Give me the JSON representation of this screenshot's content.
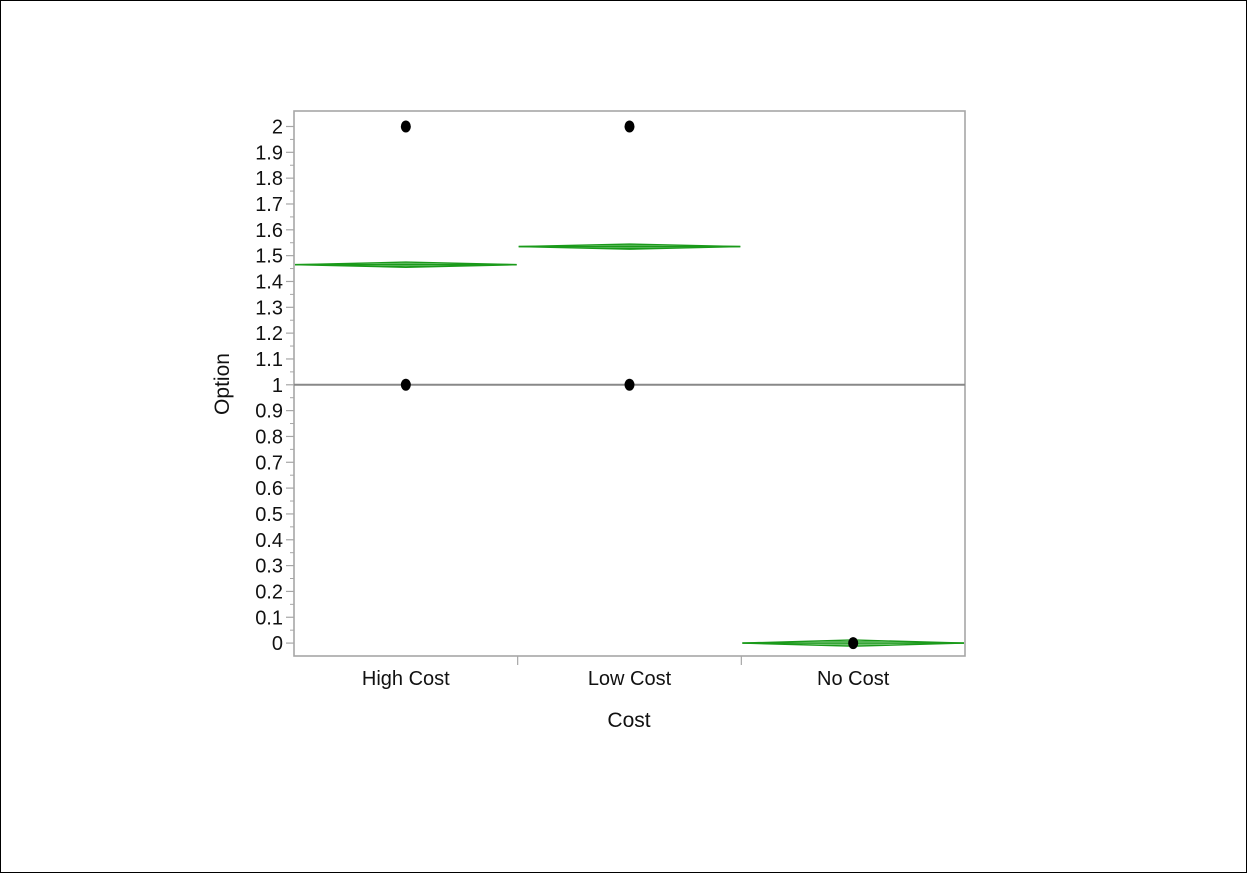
{
  "chart_data": {
    "type": "scatter",
    "title": "",
    "xlabel": "Cost",
    "ylabel": "Option",
    "categories": [
      "High Cost",
      "Low Cost",
      "No Cost"
    ],
    "ylim": [
      -0.05,
      2.06
    ],
    "yticks": [
      0,
      0.1,
      0.2,
      0.3,
      0.4,
      0.5,
      0.6,
      0.7,
      0.8,
      0.9,
      1,
      1.1,
      1.2,
      1.3,
      1.4,
      1.5,
      1.6,
      1.7,
      1.8,
      1.9,
      2
    ],
    "ytick_labels": [
      "0",
      "0.1",
      "0.2",
      "0.3",
      "0.4",
      "0.5",
      "0.6",
      "0.7",
      "0.8",
      "0.9",
      "1",
      "1.1",
      "1.2",
      "1.3",
      "1.4",
      "1.5",
      "1.6",
      "1.7",
      "1.8",
      "1.9",
      "2"
    ],
    "points": [
      {
        "category": "High Cost",
        "y": 2
      },
      {
        "category": "High Cost",
        "y": 1
      },
      {
        "category": "Low Cost",
        "y": 2
      },
      {
        "category": "Low Cost",
        "y": 1
      },
      {
        "category": "No Cost",
        "y": 0
      }
    ],
    "means_diamonds": [
      {
        "category": "High Cost",
        "mean": 1.465,
        "lower": 1.455,
        "upper": 1.475
      },
      {
        "category": "Low Cost",
        "mean": 1.535,
        "lower": 1.525,
        "upper": 1.545
      },
      {
        "category": "No Cost",
        "mean": 0.0,
        "lower": -0.012,
        "upper": 0.012
      }
    ],
    "reference_line": {
      "y": 1
    },
    "grid": false,
    "legend": "none",
    "colors": {
      "diamond": "#1a9a1a",
      "point": "#000000",
      "reference_line": "#888888",
      "frame": "#a6a6a6"
    }
  }
}
